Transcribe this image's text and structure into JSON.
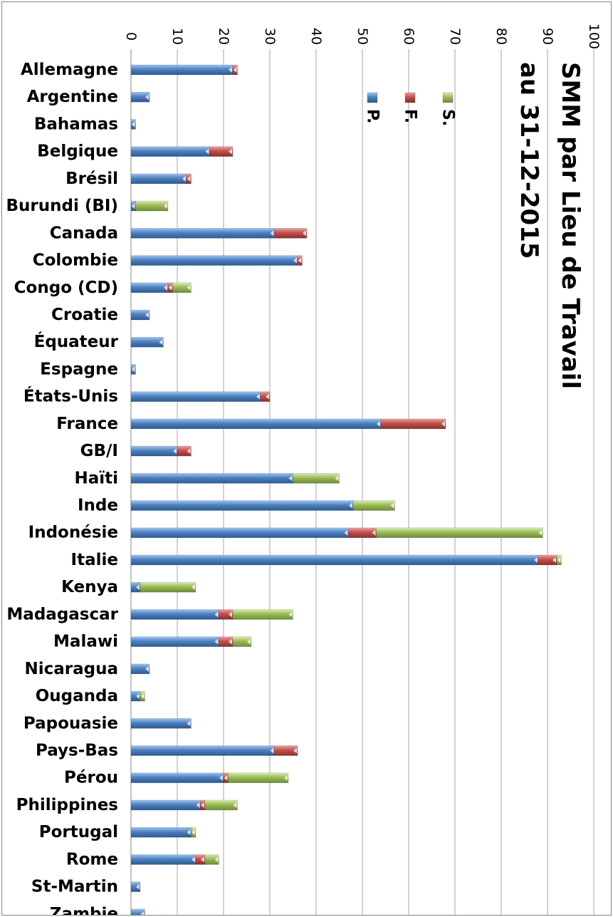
{
  "chart_data": {
    "type": "bar",
    "stacked": true,
    "orientation": "horizontal",
    "title_lines": [
      "SMM par Lieu de Travail",
      "au 31-12-2015"
    ],
    "xlim": [
      0,
      100
    ],
    "x_ticks": [
      0,
      10,
      20,
      30,
      40,
      50,
      60,
      70,
      80,
      90,
      100
    ],
    "grid": true,
    "legend_position": "top-right",
    "categories": [
      "Allemagne",
      "Argentine",
      "Bahamas",
      "Belgique",
      "Brésil",
      "Burundi (BI)",
      "Canada",
      "Colombie",
      "Congo (CD)",
      "Croatie",
      "Équateur",
      "Espagne",
      "États-Unis",
      "France",
      "GB/I",
      "Haïti",
      "Inde",
      "Indonésie",
      "Italie",
      "Kenya",
      "Madagascar",
      "Malawi",
      "Nicaragua",
      "Ouganda",
      "Papouasie",
      "Pays-Bas",
      "Pérou",
      "Philippines",
      "Portugal",
      "Rome",
      "St-Martin",
      "Zambie"
    ],
    "series": [
      {
        "name": "P.",
        "color": "#4f81bd",
        "values": [
          22,
          4,
          1,
          17,
          12,
          1,
          31,
          36,
          8,
          4,
          7,
          1,
          28,
          54,
          10,
          35,
          48,
          47,
          88,
          2,
          19,
          19,
          4,
          2,
          13,
          31,
          20,
          15,
          13,
          14,
          2,
          3
        ]
      },
      {
        "name": "F.",
        "color": "#c0504d",
        "values": [
          1,
          0,
          0,
          5,
          1,
          0,
          7,
          1,
          1,
          0,
          0,
          0,
          2,
          14,
          3,
          0,
          0,
          6,
          4,
          0,
          3,
          3,
          0,
          0,
          0,
          5,
          1,
          1,
          0,
          2,
          0,
          0
        ]
      },
      {
        "name": "S.",
        "color": "#9bbb59",
        "values": [
          0,
          0,
          0,
          0,
          0,
          7,
          0,
          0,
          4,
          0,
          0,
          0,
          0,
          0,
          0,
          10,
          9,
          36,
          1,
          12,
          13,
          4,
          0,
          1,
          0,
          0,
          13,
          7,
          1,
          3,
          0,
          0
        ]
      }
    ]
  }
}
